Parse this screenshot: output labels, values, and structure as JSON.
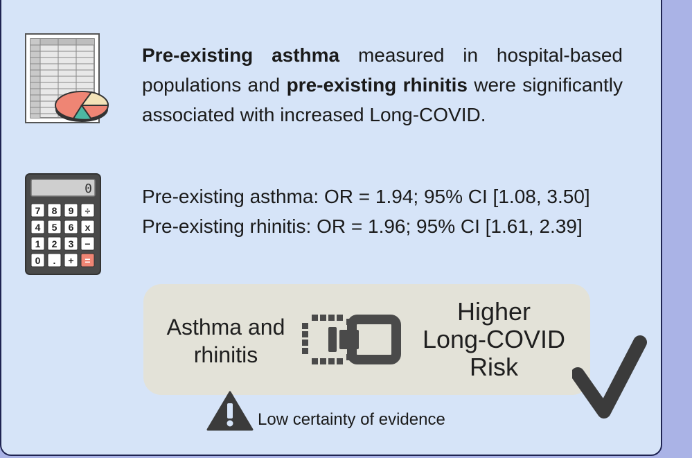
{
  "summary": {
    "part1_bold": "Pre-existing asthma",
    "part2": " measured in hospital-based populations and ",
    "part3_bold": "pre-existing rhinitis",
    "part4": " were significantly associated with increased Long-COVID."
  },
  "stats": {
    "asthma": "Pre-existing asthma: OR = 1.94; 95% CI [1.08, 3.50]",
    "rhinitis": "Pre-existing rhinitis: OR = 1.96; 95% CI [1.61, 2.39]"
  },
  "result": {
    "left_line1": "Asthma and",
    "left_line2": "rhinitis",
    "right_line1": "Higher",
    "right_line2": "Long-COVID",
    "right_line3": "Risk"
  },
  "certainty": "Low certainty of evidence",
  "calculator": {
    "display": "0",
    "keys": [
      "7",
      "8",
      "9",
      "÷",
      "4",
      "5",
      "6",
      "x",
      "1",
      "2",
      "3",
      "−",
      "0",
      ".",
      "+",
      "="
    ]
  },
  "icons": {
    "spreadsheet": "spreadsheet-pie-chart-icon",
    "calculator": "calculator-icon",
    "link": "broken-link-icon",
    "check": "checkmark-icon",
    "warning": "warning-triangle-icon"
  },
  "colors": {
    "panel": "#d6e4f8",
    "border": "#1f2452",
    "outer": "#aab3e6",
    "result_box": "#e3e2d8",
    "icon_dark": "#4a4a4a",
    "pie_red": "#ef8574",
    "pie_cream": "#f3e3b8",
    "pie_teal": "#4db8a3"
  }
}
